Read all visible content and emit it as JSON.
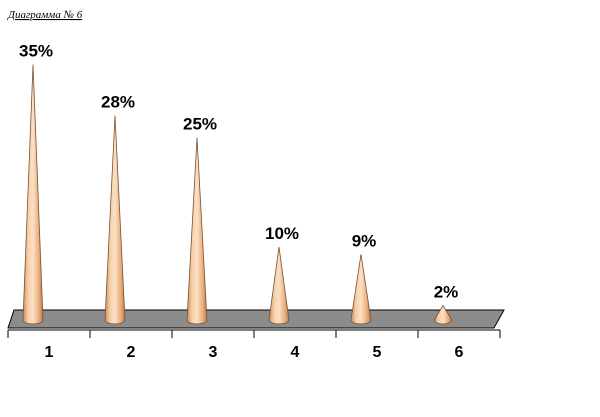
{
  "chart_data": {
    "type": "cone",
    "title": "Диаграмма № 6",
    "categories": [
      "1",
      "2",
      "3",
      "4",
      "5",
      "6"
    ],
    "values": [
      35,
      28,
      25,
      10,
      9,
      2
    ],
    "value_labels": [
      "35%",
      "28%",
      "25%",
      "10%",
      "9%",
      "2%"
    ],
    "color": "#f5c59a"
  }
}
